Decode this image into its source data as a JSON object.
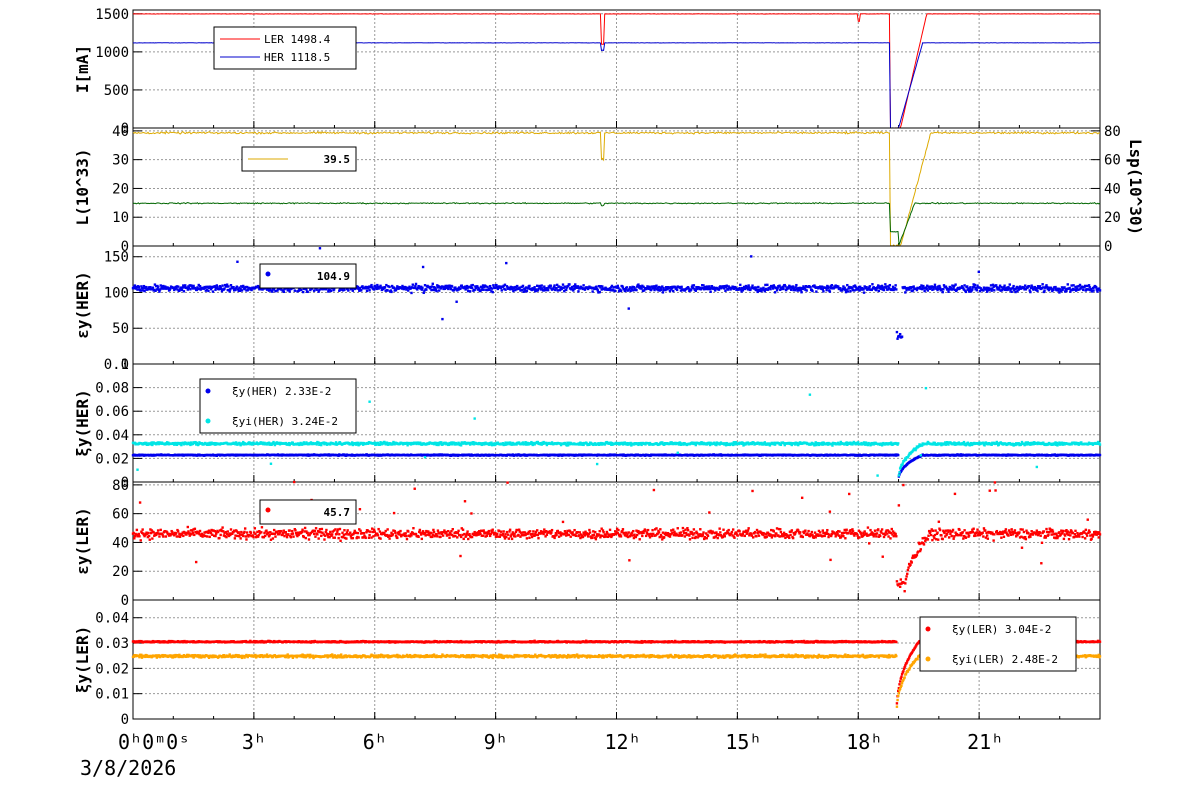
{
  "date": "3/8/2026",
  "time_axis": {
    "range_hours": [
      0,
      24
    ],
    "ticks": [
      {
        "h": 0,
        "label": "0ʰ0ᵐ0ˢ"
      },
      {
        "h": 3,
        "label": "3ʰ"
      },
      {
        "h": 6,
        "label": "6ʰ"
      },
      {
        "h": 9,
        "label": "9ʰ"
      },
      {
        "h": 12,
        "label": "12ʰ"
      },
      {
        "h": 15,
        "label": "15ʰ"
      },
      {
        "h": 18,
        "label": "18ʰ"
      },
      {
        "h": 21,
        "label": "21ʰ"
      }
    ]
  },
  "chart_data": [
    {
      "type": "line",
      "ylabel": "I[mA]",
      "ylim": [
        0,
        1550
      ],
      "yticks": [
        0,
        500,
        1000,
        1500
      ],
      "grid": true,
      "legend": "top-left",
      "series": [
        {
          "name": "LER",
          "value_label": "1498.4",
          "color": "#ff0000",
          "base": 1498.4,
          "noise": 3,
          "events": [
            [
              11.62,
              11.7,
              1100
            ],
            [
              18.0,
              18.05,
              1400
            ],
            [
              18.8,
              19.05,
              0
            ],
            [
              19.05,
              19.7,
              "ramp"
            ]
          ]
        },
        {
          "name": "HER",
          "value_label": "1118.5",
          "color": "#0000cc",
          "base": 1118.5,
          "noise": 3,
          "events": [
            [
              11.62,
              11.7,
              1020
            ],
            [
              18.8,
              19.0,
              0
            ],
            [
              19.0,
              19.6,
              "ramp"
            ]
          ]
        }
      ]
    },
    {
      "type": "line",
      "ylabel": "L(10^33)",
      "ylim": [
        0,
        41
      ],
      "yticks": [
        0,
        10,
        20,
        30,
        40
      ],
      "y2label": "Lsp(10^30)",
      "y2lim": [
        0,
        82
      ],
      "y2ticks": [
        0,
        20,
        40,
        60,
        80
      ],
      "grid": true,
      "legend": "top-left",
      "legend_value": "39.5",
      "series": [
        {
          "name": "",
          "color": "#ddaa00",
          "base": 39.3,
          "noise": 0.5,
          "events": [
            [
              11.62,
              11.7,
              30
            ],
            [
              18.8,
              19.05,
              0
            ],
            [
              19.05,
              19.8,
              "ramp"
            ]
          ]
        },
        {
          "name": "",
          "color": "#006600",
          "base": 29.7,
          "noise": 0.6,
          "axis": "y2",
          "events": [
            [
              11.62,
              11.7,
              28
            ],
            [
              18.8,
              19.0,
              10
            ],
            [
              19.0,
              19.4,
              "ramp"
            ]
          ]
        }
      ]
    },
    {
      "type": "scatter",
      "ylabel": "εy(HER)",
      "ylim": [
        0,
        165
      ],
      "yticks": [
        0,
        50,
        100,
        150
      ],
      "grid": true,
      "legend": "top-left",
      "legend_value": "104.9",
      "series": [
        {
          "name": "",
          "color": "#0000ee",
          "base": 106,
          "noise": 7,
          "outliers": 0.01,
          "events": [
            [
              18.95,
              19.1,
              40
            ]
          ]
        }
      ]
    },
    {
      "type": "scatter",
      "ylabel": "ξy(HER)",
      "ylim": [
        0,
        0.1
      ],
      "yticks": [
        0,
        0.02,
        0.04,
        0.06,
        0.08,
        0.1
      ],
      "ytick_labels": [
        "0",
        "0.02",
        "0.04",
        "0.06",
        "0.08",
        "0.1"
      ],
      "grid": true,
      "legend": "top-left",
      "series": [
        {
          "name": "ξy(HER)",
          "value_label": "2.33E-2",
          "color": "#0000ee",
          "base": 0.0228,
          "noise": 0.0007,
          "events": [
            [
              19.0,
              19.6,
              "recover"
            ]
          ]
        },
        {
          "name": "ξyi(HER)",
          "value_label": "3.24E-2",
          "color": "#00e5e5",
          "base": 0.0325,
          "noise": 0.0018,
          "outliers": 0.012,
          "events": [
            [
              19.0,
              19.6,
              "recover"
            ]
          ]
        }
      ]
    },
    {
      "type": "scatter",
      "ylabel": "εy(LER)",
      "ylim": [
        0,
        82
      ],
      "yticks": [
        0,
        20,
        40,
        60,
        80
      ],
      "grid": true,
      "legend": "top-left",
      "legend_value": "45.7",
      "series": [
        {
          "name": "",
          "color": "#ff0000",
          "base": 46,
          "noise": 5,
          "outliers": 0.03,
          "events": [
            [
              18.95,
              19.15,
              12
            ],
            [
              19.15,
              19.8,
              "recover"
            ]
          ]
        }
      ]
    },
    {
      "type": "scatter",
      "ylabel": "ξy(LER)",
      "ylim": [
        0,
        0.047
      ],
      "yticks": [
        0,
        0.01,
        0.02,
        0.03,
        0.04
      ],
      "ytick_labels": [
        "0",
        "0.01",
        "0.02",
        "0.03",
        "0.04"
      ],
      "grid": true,
      "legend": "top-right",
      "series": [
        {
          "name": "ξy(LER)",
          "value_label": "3.04E-2",
          "color": "#ff0000",
          "base": 0.0305,
          "noise": 0.0004,
          "events": [
            [
              18.95,
              19.5,
              "recover"
            ]
          ]
        },
        {
          "name": "ξyi(LER)",
          "value_label": "2.48E-2",
          "color": "#ffa500",
          "base": 0.0248,
          "noise": 0.0008,
          "events": [
            [
              18.95,
              19.5,
              "recover"
            ]
          ]
        }
      ]
    }
  ]
}
